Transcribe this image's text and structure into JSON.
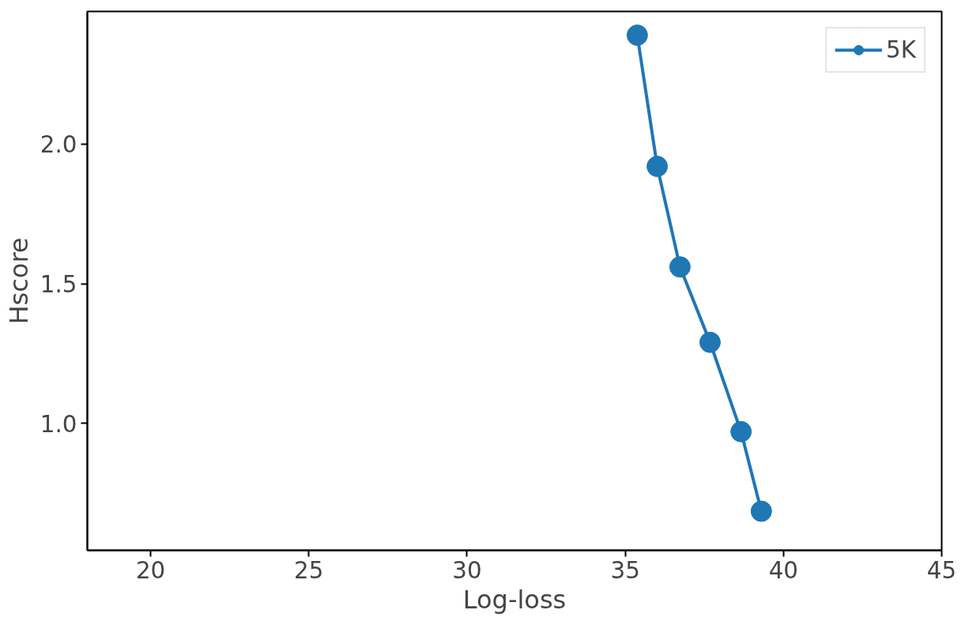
{
  "chart_data": {
    "type": "line",
    "xlabel": "Log-loss",
    "ylabel": "Hscore",
    "x": [
      35.38,
      36.01,
      36.73,
      37.68,
      38.66,
      39.3
    ],
    "series": [
      {
        "name": "5K",
        "color": "#1f77b4",
        "values": [
          2.39,
          1.92,
          1.56,
          1.29,
          0.97,
          0.685
        ]
      }
    ],
    "xlim": [
      18,
      45
    ],
    "ylim": [
      0.545,
      2.475
    ],
    "xticks": [
      20,
      25,
      30,
      35,
      40,
      45
    ],
    "yticks": [
      {
        "value": 1,
        "label": "1.0"
      },
      1.5,
      {
        "value": 2,
        "label": "2.0"
      }
    ],
    "marker": "circle",
    "line_style": "solid",
    "grid": false,
    "legend": "top right"
  }
}
